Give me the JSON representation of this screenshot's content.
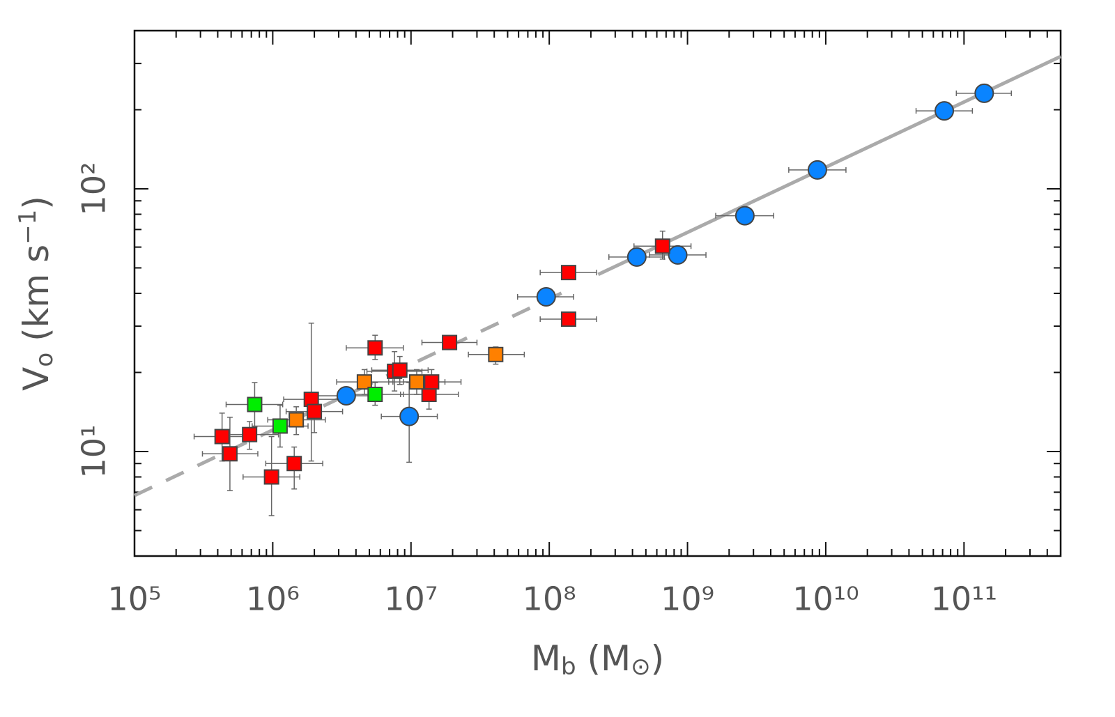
{
  "chart_data": {
    "type": "scatter",
    "x_label": [
      {
        "text": "M"
      },
      {
        "text": "b",
        "sub": true
      },
      {
        "text": " (M"
      },
      {
        "text": "⊙",
        "sub": true
      },
      {
        "text": ")"
      }
    ],
    "y_label": [
      {
        "text": "V"
      },
      {
        "text": "o",
        "sub": true
      },
      {
        "text": " (km s"
      },
      {
        "text": "−1",
        "sup": true
      },
      {
        "text": ")"
      }
    ],
    "xlog": true,
    "ylog": true,
    "xlim": [
      100000,
      500000000000
    ],
    "ylim": [
      4,
      400
    ],
    "xticks": [
      {
        "value": 100000,
        "label": "10⁵"
      },
      {
        "value": 1000000,
        "label": "10⁶"
      },
      {
        "value": 10000000,
        "label": "10⁷"
      },
      {
        "value": 100000000,
        "label": "10⁸"
      },
      {
        "value": 1000000000,
        "label": "10⁹"
      },
      {
        "value": 10000000000,
        "label": "10¹⁰"
      },
      {
        "value": 100000000000,
        "label": "10¹¹"
      }
    ],
    "yticks": [
      {
        "value": 10,
        "label": "10¹"
      },
      {
        "value": 100,
        "label": "10²"
      }
    ],
    "xminor_ticks": [
      200000,
      300000,
      400000,
      500000,
      600000,
      700000,
      800000,
      900000,
      2000000,
      3000000,
      4000000,
      5000000,
      6000000,
      7000000,
      8000000,
      9000000,
      20000000,
      30000000,
      40000000,
      50000000,
      60000000,
      70000000,
      80000000,
      90000000,
      200000000,
      300000000,
      400000000,
      500000000,
      600000000,
      700000000,
      800000000,
      900000000,
      2000000000,
      3000000000,
      4000000000,
      5000000000,
      6000000000,
      7000000000,
      8000000000,
      9000000000,
      20000000000,
      30000000000,
      40000000000,
      50000000000,
      60000000000,
      70000000000,
      80000000000,
      90000000000,
      200000000000,
      300000000000,
      400000000000
    ],
    "yminor_ticks": [
      5,
      6,
      7,
      8,
      9,
      20,
      30,
      40,
      50,
      60,
      70,
      80,
      90,
      200,
      300,
      400
    ],
    "lines": [
      {
        "style": "solid",
        "color": "#aaaaaa",
        "x": [
          226000000,
          500000000000
        ],
        "y": [
          47.2,
          319
        ]
      },
      {
        "style": "dashed",
        "color": "#aaaaaa",
        "x": [
          100000,
          148000000
        ],
        "y": [
          6.8,
          42
        ]
      }
    ],
    "series": [
      {
        "marker": "circle",
        "color": "#0a84ff",
        "x": [
          3400000,
          9700000,
          95000000,
          430000000,
          850000000,
          2600000000,
          8700000000,
          72000000000,
          140000000000
        ],
        "y": [
          16.3,
          13.6,
          38.8,
          55,
          56,
          79,
          118,
          198,
          231
        ],
        "xerr": [
          [
            2100000,
            5400000
          ],
          [
            6100000,
            15500000
          ],
          [
            59000000,
            150000000
          ],
          [
            270000000,
            680000000
          ],
          [
            530000000,
            1360000000
          ],
          [
            1600000000,
            4200000000
          ],
          [
            5400000000,
            14000000000
          ],
          [
            45000000000,
            115000000000
          ],
          [
            88000000000,
            220000000000
          ]
        ],
        "yerr": [
          null,
          [
            9.1,
            18.3
          ],
          null,
          null,
          null,
          [
            75,
            84
          ],
          null,
          null,
          null
        ]
      },
      {
        "marker": "square",
        "color": "#ff0000",
        "x": [
          430000,
          490000,
          680000,
          980000,
          1430000,
          1900000,
          2000000,
          5500000,
          7600000,
          8300000,
          13500000,
          14100000,
          19000000,
          138000000,
          138000000,
          660000000
        ],
        "y": [
          11.4,
          9.8,
          11.6,
          8.0,
          9.0,
          15.8,
          14.2,
          24.8,
          20.2,
          20.4,
          16.5,
          18.4,
          26,
          31.9,
          48,
          60.5
        ],
        "xerr": [
          [
            270000,
            690000
          ],
          [
            310000,
            780000
          ],
          [
            430000,
            1100000
          ],
          [
            610000,
            1570000
          ],
          [
            890000,
            2300000
          ],
          [
            1200000,
            3000000
          ],
          [
            1250000,
            3200000
          ],
          [
            3400000,
            8800000
          ],
          [
            4800000,
            12000000
          ],
          [
            5200000,
            13300000
          ],
          [
            8400000,
            22000000
          ],
          [
            8800000,
            23000000
          ],
          [
            12000000,
            30000000
          ],
          [
            86000000,
            220000000
          ],
          [
            86000000,
            220000000
          ],
          [
            410000000,
            1060000000
          ]
        ],
        "yerr": [
          [
            9.2,
            14.0
          ],
          [
            7.1,
            13.5
          ],
          [
            10.2,
            13.0
          ],
          [
            5.7,
            11.4
          ],
          [
            7.2,
            10.4
          ],
          [
            9.2,
            30.8
          ],
          [
            11.8,
            16.5
          ],
          [
            22.4,
            27.7
          ],
          [
            17,
            24
          ],
          [
            18,
            23
          ],
          [
            14.5,
            18.5
          ],
          [
            16,
            20.5
          ],
          [
            24.5,
            27.5
          ],
          null,
          null,
          [
            54,
            69
          ]
        ]
      },
      {
        "marker": "square",
        "color": "#ff8000",
        "x": [
          1480000,
          4600000,
          11000000,
          41000000
        ],
        "y": [
          13.2,
          18.4,
          18.4,
          23.4
        ],
        "xerr": [
          [
            920000,
            2400000
          ],
          [
            2900000,
            7400000
          ],
          [
            6900000,
            17600000
          ],
          [
            26000000,
            66000000
          ]
        ],
        "yerr": [
          [
            11.6,
            14.8
          ],
          [
            16.5,
            20.5
          ],
          [
            16.5,
            20.5
          ],
          [
            21.5,
            25
          ]
        ]
      },
      {
        "marker": "square",
        "color": "#00ee00",
        "x": [
          740000,
          1130000,
          5500000
        ],
        "y": [
          15.1,
          12.5,
          16.5
        ],
        "xerr": [
          [
            460000,
            1180000
          ],
          [
            710000,
            1800000
          ],
          [
            3400000,
            8800000
          ]
        ],
        "yerr": [
          [
            12.4,
            18.3
          ],
          [
            10.4,
            15
          ],
          [
            15,
            18.3
          ]
        ]
      }
    ]
  }
}
